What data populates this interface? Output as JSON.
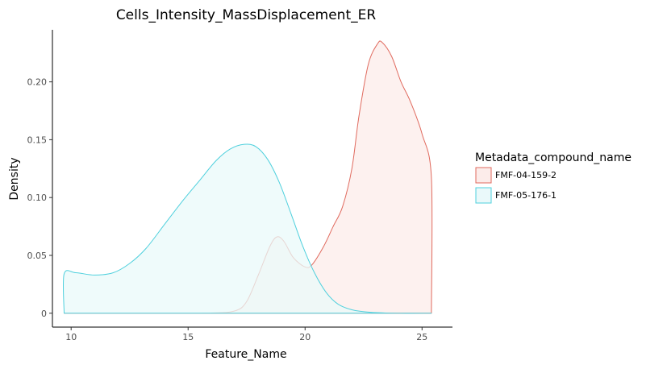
{
  "chart_data": {
    "type": "area",
    "title": "Cells_Intensity_MassDisplacement_ER",
    "xlabel": "Feature_Name",
    "ylabel": "Density",
    "xlim": [
      9.2,
      26.3
    ],
    "ylim": [
      -0.012,
      0.245
    ],
    "x_ticks": [
      10,
      15,
      20,
      25
    ],
    "x_tick_labels": [
      "10",
      "15",
      "20",
      "25"
    ],
    "y_ticks": [
      0,
      0.05,
      0.1,
      0.15,
      0.2
    ],
    "y_tick_labels": [
      "0",
      "0.05",
      "0.10",
      "0.15",
      "0.20"
    ],
    "grid": false,
    "legend": {
      "title": "Metadata_compound_name",
      "placement": "right"
    },
    "series": [
      {
        "name": "FMF-04-159-2",
        "color": "#e06a5e",
        "fill": "#fcecea",
        "points": [
          [
            9.7,
            0
          ],
          [
            14,
            0
          ],
          [
            16,
            0.0002
          ],
          [
            17,
            0.002
          ],
          [
            17.5,
            0.01
          ],
          [
            18,
            0.033
          ],
          [
            18.5,
            0.058
          ],
          [
            18.8,
            0.066
          ],
          [
            19.1,
            0.062
          ],
          [
            19.5,
            0.048
          ],
          [
            20,
            0.04
          ],
          [
            20.3,
            0.042
          ],
          [
            20.8,
            0.058
          ],
          [
            21.2,
            0.075
          ],
          [
            21.6,
            0.092
          ],
          [
            22,
            0.125
          ],
          [
            22.3,
            0.17
          ],
          [
            22.7,
            0.215
          ],
          [
            23.1,
            0.233
          ],
          [
            23.3,
            0.234
          ],
          [
            23.7,
            0.222
          ],
          [
            24.1,
            0.2
          ],
          [
            24.5,
            0.183
          ],
          [
            25.0,
            0.155
          ],
          [
            25.4,
            0.117
          ],
          [
            25.4,
            0
          ]
        ]
      },
      {
        "name": "FMF-05-176-1",
        "color": "#4fd0dd",
        "fill": "#eaf9fa",
        "points": [
          [
            9.7,
            0
          ],
          [
            9.7,
            0.034
          ],
          [
            10.2,
            0.035
          ],
          [
            11.0,
            0.033
          ],
          [
            11.8,
            0.035
          ],
          [
            12.5,
            0.043
          ],
          [
            13.2,
            0.056
          ],
          [
            14.0,
            0.077
          ],
          [
            14.8,
            0.098
          ],
          [
            15.5,
            0.115
          ],
          [
            16.2,
            0.132
          ],
          [
            16.8,
            0.142
          ],
          [
            17.4,
            0.146
          ],
          [
            17.9,
            0.144
          ],
          [
            18.4,
            0.133
          ],
          [
            18.9,
            0.113
          ],
          [
            19.4,
            0.086
          ],
          [
            19.9,
            0.058
          ],
          [
            20.4,
            0.035
          ],
          [
            20.9,
            0.018
          ],
          [
            21.4,
            0.008
          ],
          [
            22.0,
            0.003
          ],
          [
            22.8,
            0.0008
          ],
          [
            24,
            0
          ],
          [
            25.4,
            0
          ]
        ]
      }
    ]
  }
}
